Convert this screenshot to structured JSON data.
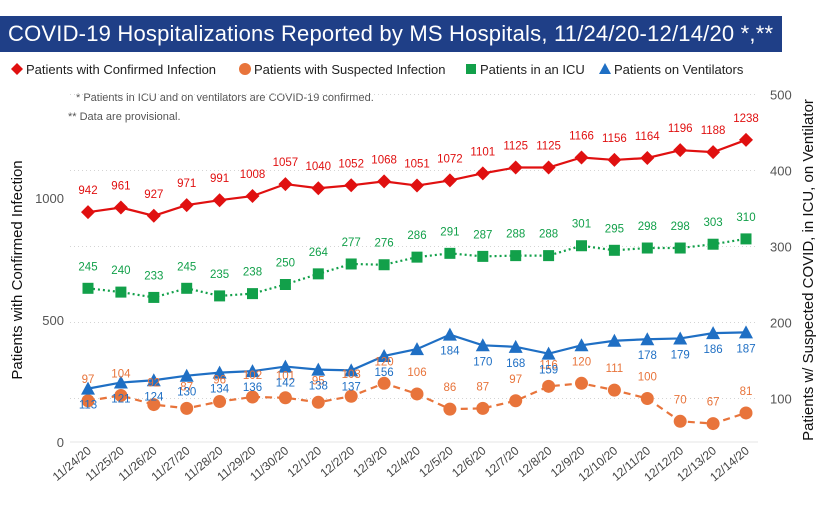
{
  "title": "COVID-19 Hospitalizations Reported by MS Hospitals, 11/24/20-12/14/20 *,**",
  "notes": [
    "* Patients in ICU and on ventilators are COVID-19 confirmed.",
    "** Data are provisional."
  ],
  "colors": {
    "title_bg": "#1f3f87",
    "confirmed": "#e01010",
    "suspected": "#e8743b",
    "icu": "#12a04a",
    "vent": "#1f6fc4"
  },
  "chart_data": {
    "type": "line",
    "categories": [
      "11/24/20",
      "11/25/20",
      "11/26/20",
      "11/27/20",
      "11/28/20",
      "11/29/20",
      "11/30/20",
      "12/1/20",
      "12/2/20",
      "12/3/20",
      "12/4/20",
      "12/5/20",
      "12/6/20",
      "12/7/20",
      "12/8/20",
      "12/9/20",
      "12/10/20",
      "12/11/20",
      "12/12/20",
      "12/13/20",
      "12/14/20"
    ],
    "ylabel": "Patients with Confirmed Infection",
    "y2label": "Patients w/ Suspected COVID, in ICU, on Ventilator",
    "ylim": [
      0,
      1400
    ],
    "yticks": [
      0,
      500,
      1000
    ],
    "y2lim": [
      45,
      500
    ],
    "y2ticks": [
      100,
      200,
      300,
      400,
      500
    ],
    "legend_position": "top",
    "grid": "horizontal dotted",
    "series": [
      {
        "name": "Patients with Confirmed Infection",
        "axis": "left",
        "marker": "diamond",
        "line": "solid",
        "color": "#e01010",
        "values": [
          942,
          961,
          927,
          971,
          991,
          1008,
          1057,
          1040,
          1052,
          1068,
          1051,
          1072,
          1101,
          1125,
          1125,
          1166,
          1156,
          1164,
          1196,
          1188,
          1238
        ]
      },
      {
        "name": "Patients with Suspected Infection",
        "axis": "right",
        "marker": "circle",
        "line": "dashed",
        "color": "#e8743b",
        "values": [
          97,
          104,
          92,
          87,
          96,
          102,
          101,
          95,
          103,
          120,
          106,
          86,
          87,
          97,
          116,
          120,
          111,
          100,
          70,
          67,
          81
        ]
      },
      {
        "name": "Patients in an ICU",
        "axis": "right",
        "marker": "square",
        "line": "dotted",
        "color": "#12a04a",
        "values": [
          245,
          240,
          233,
          245,
          235,
          238,
          250,
          264,
          277,
          276,
          286,
          291,
          287,
          288,
          288,
          301,
          295,
          298,
          298,
          303,
          310
        ]
      },
      {
        "name": "Patients on Ventilators",
        "axis": "right",
        "marker": "triangle",
        "line": "solid",
        "color": "#1f6fc4",
        "values": [
          113,
          121,
          124,
          130,
          134,
          136,
          142,
          138,
          137,
          156,
          165,
          184,
          170,
          168,
          159,
          170,
          176,
          178,
          179,
          186,
          187
        ]
      }
    ],
    "data_labels": {
      "Patients with Confirmed Infection": [
        "942",
        "961",
        "927",
        "971",
        "991",
        "1008",
        "1057",
        "1040",
        "1052",
        "1068",
        "1051",
        "1072",
        "1101",
        "1125",
        "1125",
        "1166",
        "1156",
        "1164",
        "1196",
        "1188",
        "1238"
      ],
      "Patients with Suspected Infection": [
        "97",
        "104",
        "92",
        "87",
        "96",
        "102",
        "101",
        "95",
        "103",
        "120",
        "106",
        "86",
        "87",
        "97",
        "116",
        "120",
        "111",
        "100",
        "70",
        "67",
        "81"
      ],
      "Patients in an ICU": [
        "245",
        "240",
        "233",
        "245",
        "235",
        "238",
        "250",
        "264",
        "277",
        "276",
        "286",
        "291",
        "287",
        "288",
        "288",
        "301",
        "295",
        "298",
        "298",
        "303",
        "310"
      ],
      "Patients on Ventilators": [
        "113",
        "121",
        "124",
        "130",
        "134",
        "136",
        "142",
        "138",
        "137",
        "156",
        "",
        "184",
        "170",
        "168",
        "159",
        "",
        "",
        "178",
        "179",
        "186",
        "187"
      ]
    }
  }
}
